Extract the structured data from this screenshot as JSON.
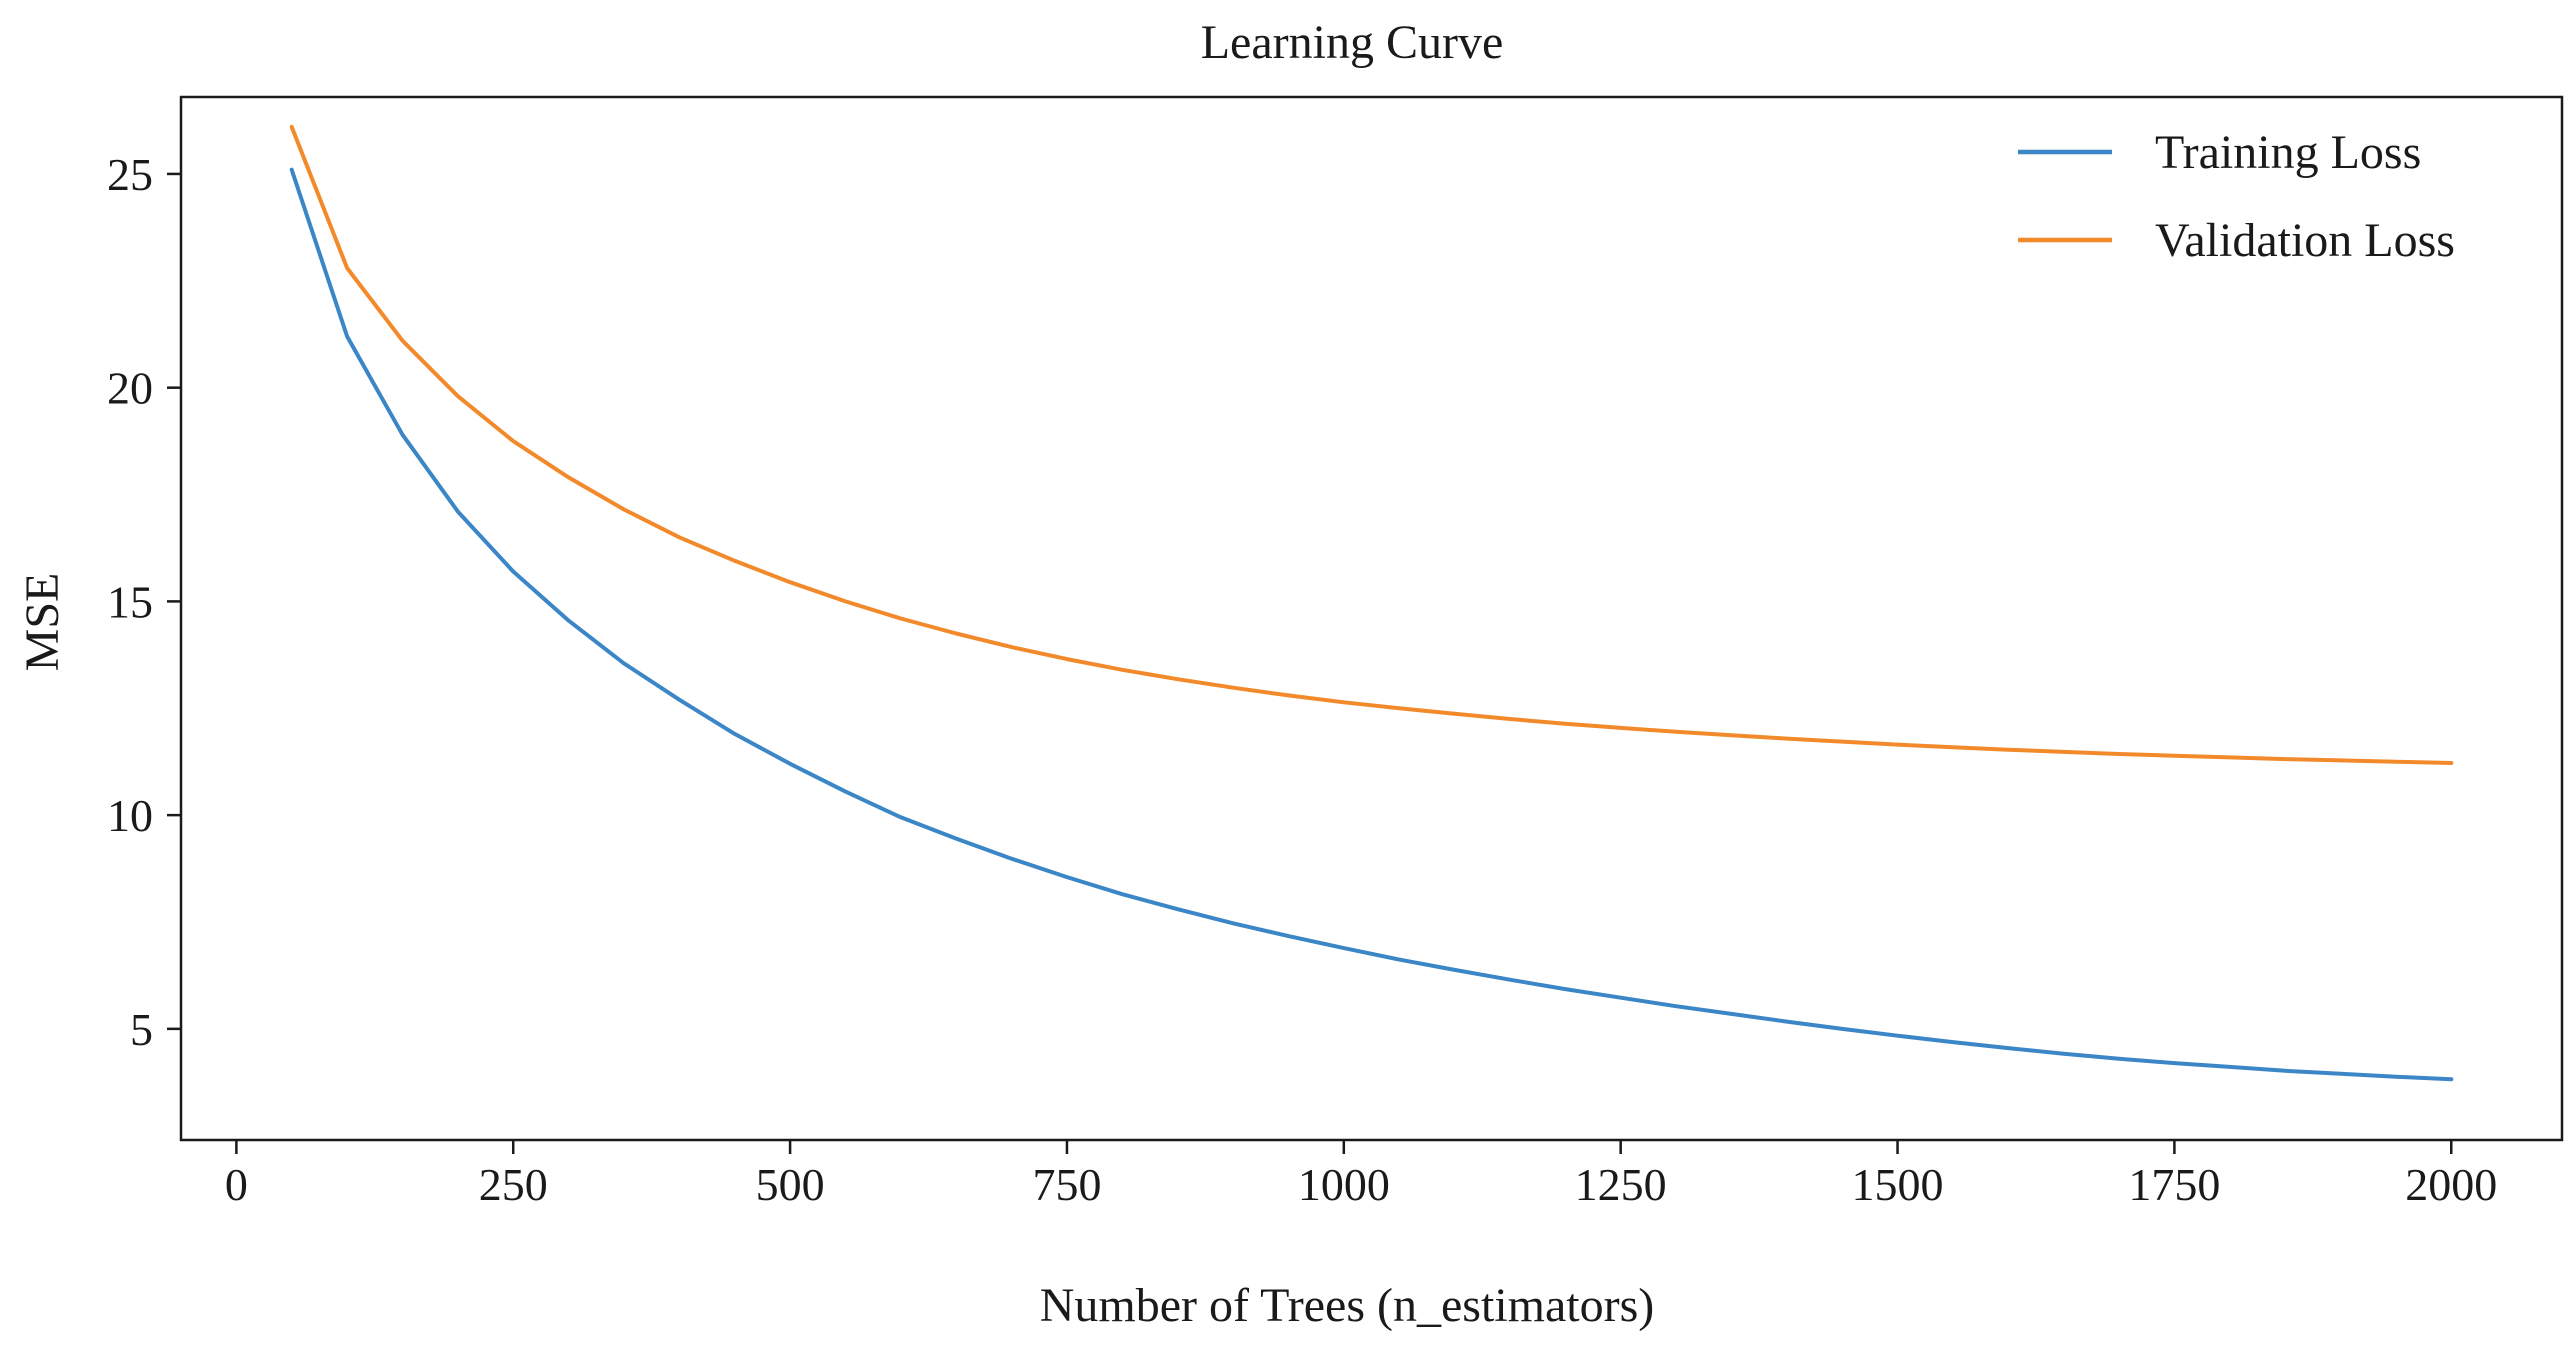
{
  "chart_data": {
    "type": "line",
    "title": "Learning Curve",
    "xlabel": "Number of Trees (n_estimators)",
    "ylabel": "MSE",
    "xlim": [
      -50,
      2100
    ],
    "ylim": [
      2.4,
      26.8
    ],
    "xticks": [
      0,
      250,
      500,
      750,
      1000,
      1250,
      1500,
      1750,
      2000
    ],
    "yticks": [
      5,
      10,
      15,
      20,
      25
    ],
    "grid": false,
    "legend": "top-right",
    "x": [
      50,
      100,
      150,
      200,
      250,
      300,
      350,
      400,
      450,
      500,
      550,
      600,
      650,
      700,
      750,
      800,
      850,
      900,
      950,
      1000,
      1050,
      1100,
      1150,
      1200,
      1250,
      1300,
      1350,
      1400,
      1450,
      1500,
      1550,
      1600,
      1650,
      1700,
      1750,
      1800,
      1850,
      1900,
      1950,
      2000
    ],
    "series": [
      {
        "name": "Training Loss",
        "color": "#3b86c6",
        "values": [
          25.1,
          21.2,
          18.9,
          17.1,
          15.7,
          14.55,
          13.55,
          12.7,
          11.9,
          11.2,
          10.55,
          9.95,
          9.45,
          8.98,
          8.55,
          8.15,
          7.8,
          7.47,
          7.17,
          6.89,
          6.62,
          6.38,
          6.15,
          5.93,
          5.73,
          5.53,
          5.35,
          5.17,
          5.0,
          4.84,
          4.69,
          4.55,
          4.42,
          4.3,
          4.2,
          4.11,
          4.02,
          3.95,
          3.88,
          3.82
        ]
      },
      {
        "name": "Validation Loss",
        "color": "#f28a2b",
        "values": [
          26.1,
          22.8,
          21.1,
          19.8,
          18.75,
          17.9,
          17.15,
          16.5,
          15.95,
          15.45,
          15.0,
          14.6,
          14.25,
          13.93,
          13.65,
          13.4,
          13.18,
          12.98,
          12.8,
          12.64,
          12.5,
          12.37,
          12.25,
          12.14,
          12.04,
          11.95,
          11.87,
          11.79,
          11.72,
          11.65,
          11.59,
          11.53,
          11.48,
          11.43,
          11.39,
          11.35,
          11.31,
          11.28,
          11.25,
          11.22
        ]
      }
    ]
  }
}
